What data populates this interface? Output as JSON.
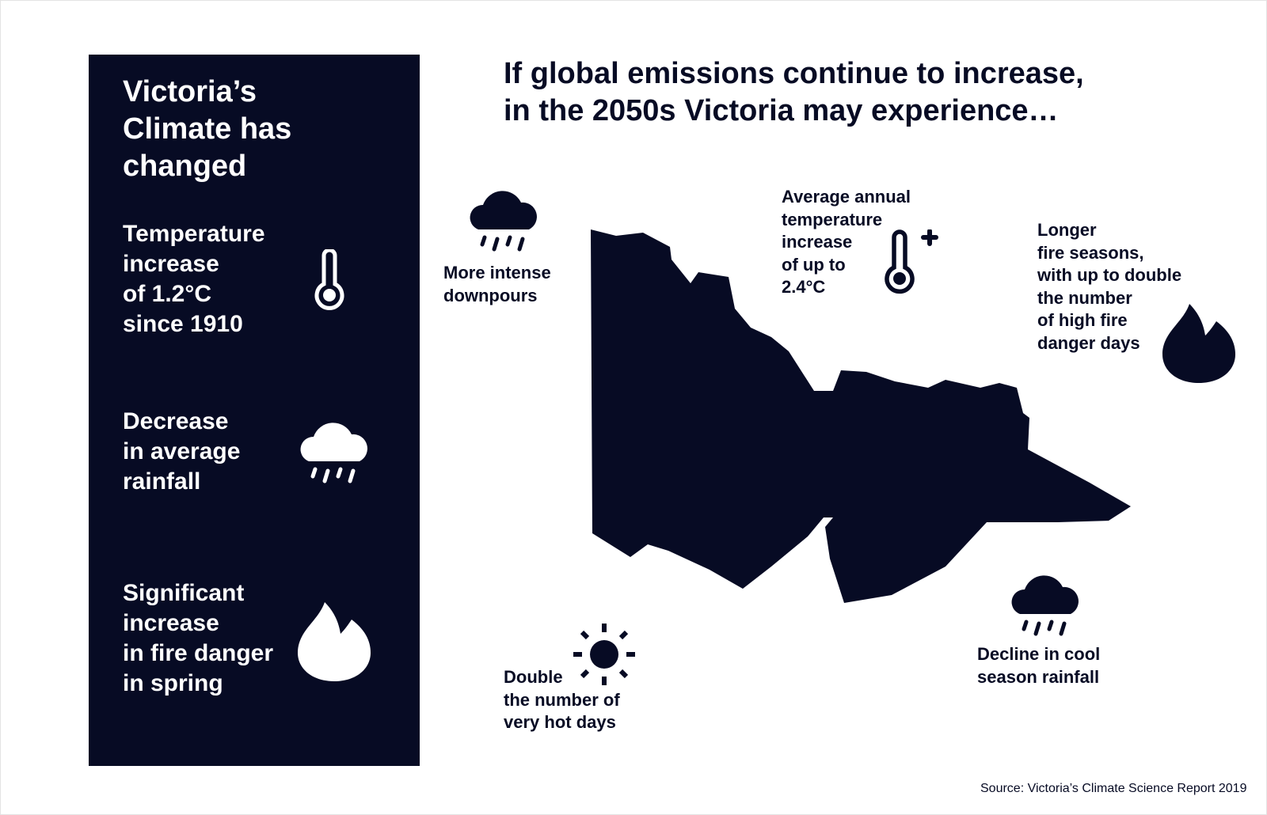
{
  "colors": {
    "navy": "#070b24",
    "white": "#ffffff"
  },
  "panel": {
    "title": [
      "Victoria’s",
      "Climate has",
      "changed"
    ],
    "items": [
      {
        "lines": [
          "Temperature",
          "increase",
          "of 1.2°C",
          "since 1910"
        ],
        "icon": "thermometer-icon"
      },
      {
        "lines": [
          "Decrease",
          "in average",
          "rainfall"
        ],
        "icon": "rain-cloud-icon"
      },
      {
        "lines": [
          "Significant",
          "increase",
          "in fire danger",
          "in spring"
        ],
        "icon": "flame-icon"
      }
    ]
  },
  "headline": [
    "If global emissions continue to increase,",
    "in the 2050s Victoria may experience…"
  ],
  "projections": {
    "downpours": {
      "lines": [
        "More intense",
        "downpours"
      ],
      "icon": "rain-cloud-icon"
    },
    "temperature": {
      "lines": [
        "Average annual",
        "temperature",
        "increase",
        "of up to",
        "2.4°C"
      ],
      "icon": "thermometer-plus-icon"
    },
    "fire": {
      "lines": [
        "Longer",
        "fire seasons,",
        "with up to double",
        "the number",
        "of high fire",
        "danger days"
      ],
      "icon": "flame-icon"
    },
    "hot_days": {
      "lines": [
        "Double",
        "the number of",
        "very hot days"
      ],
      "icon": "sun-icon"
    },
    "cool_rainfall": {
      "lines": [
        "Decline in cool",
        "season rainfall"
      ],
      "icon": "rain-cloud-icon"
    }
  },
  "source": "Source: Victoria’s Climate Science Report 2019"
}
